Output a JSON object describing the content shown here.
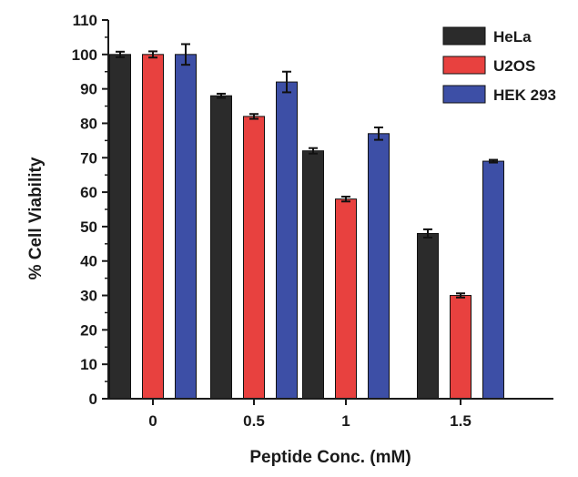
{
  "chart_data": {
    "type": "bar",
    "title": "",
    "xlabel": "Peptide Conc. (mM)",
    "ylabel": "% Cell Viability",
    "categories": [
      "0",
      "0.5",
      "1",
      "1.5"
    ],
    "ylim": [
      0,
      110
    ],
    "yticks": [
      0,
      10,
      20,
      30,
      40,
      50,
      60,
      70,
      80,
      90,
      100,
      110
    ],
    "grid": false,
    "legend_position": "top-right",
    "series": [
      {
        "name": "HeLa",
        "color": "#2b2b2b",
        "values": [
          100,
          88,
          72,
          48
        ],
        "errors": [
          0.8,
          0.6,
          0.8,
          1.2
        ]
      },
      {
        "name": "U2OS",
        "color": "#e8413f",
        "values": [
          100,
          82,
          58,
          30
        ],
        "errors": [
          0.9,
          0.7,
          0.7,
          0.6
        ]
      },
      {
        "name": "HEK 293",
        "color": "#3d4fa6",
        "values": [
          100,
          92,
          77,
          69
        ],
        "errors": [
          3.0,
          3.0,
          1.8,
          0.4
        ]
      }
    ]
  }
}
